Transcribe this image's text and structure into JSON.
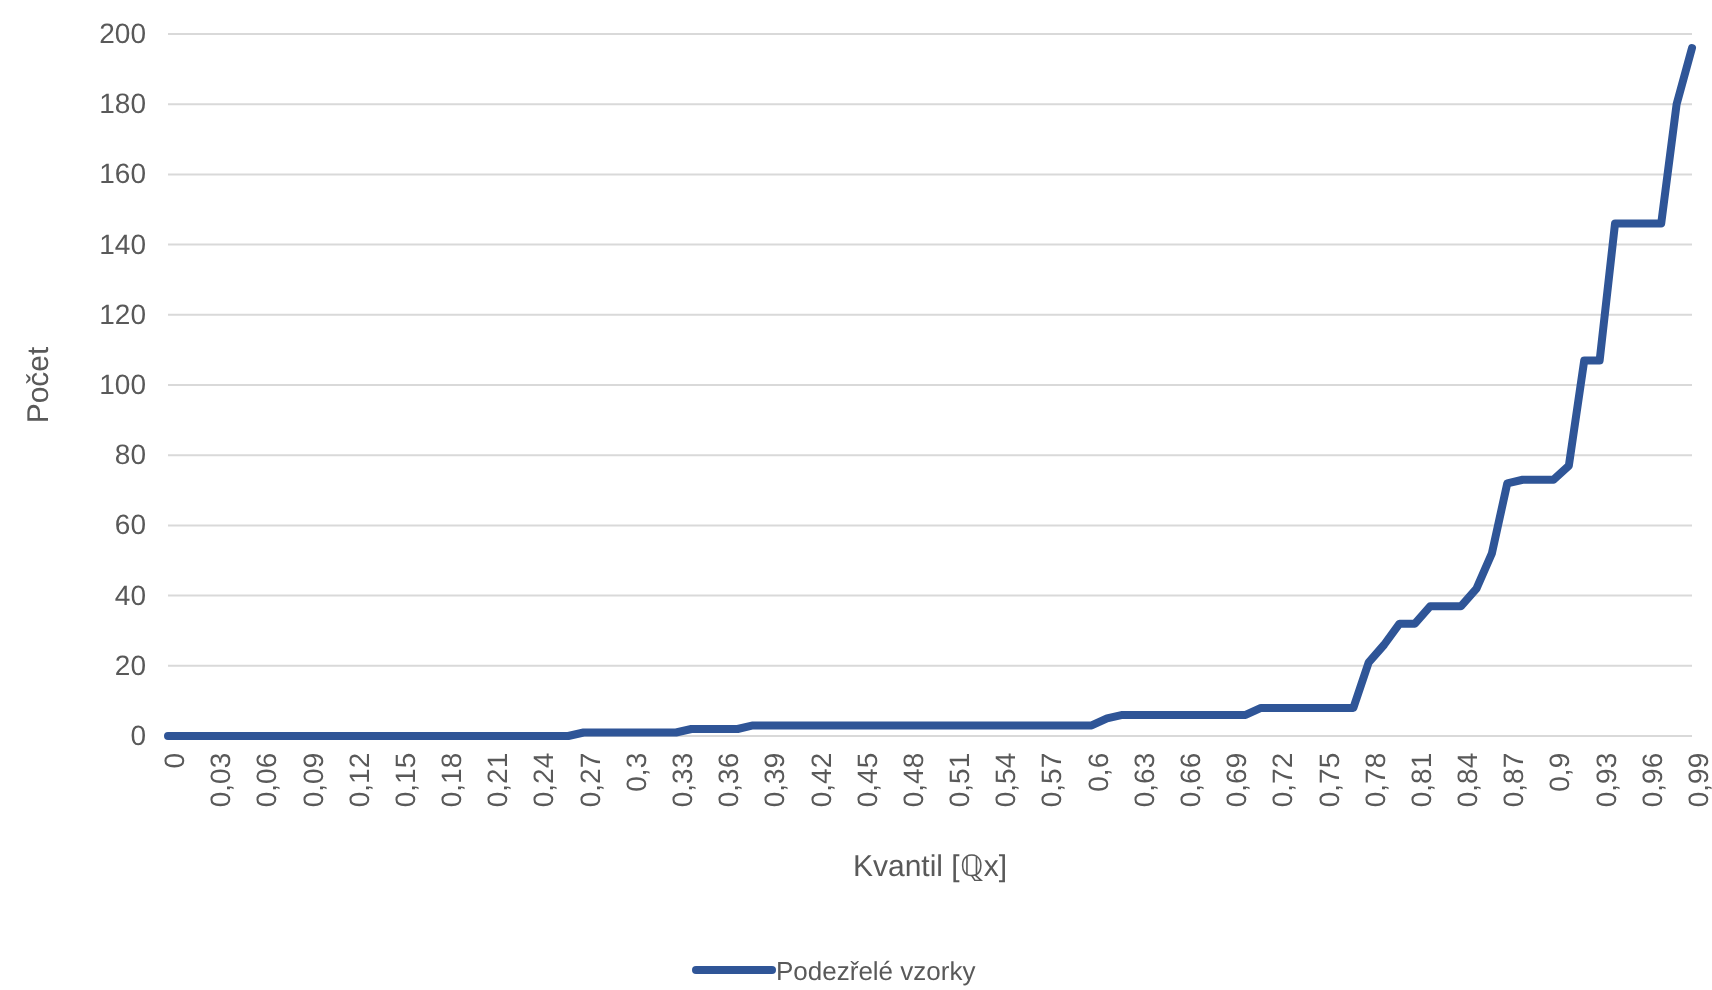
{
  "chart_data": {
    "type": "line",
    "xlabel": "Kvantil [ℚx]",
    "ylabel": "Počet",
    "categories": [
      "0",
      null,
      null,
      "0,03",
      null,
      null,
      "0,06",
      null,
      null,
      "0,09",
      null,
      null,
      "0,12",
      null,
      null,
      "0,15",
      null,
      null,
      "0,18",
      null,
      null,
      "0,21",
      null,
      null,
      "0,24",
      null,
      null,
      "0,27",
      null,
      null,
      "0,3",
      null,
      null,
      "0,33",
      null,
      null,
      "0,36",
      null,
      null,
      "0,39",
      null,
      null,
      "0,42",
      null,
      null,
      "0,45",
      null,
      null,
      "0,48",
      null,
      null,
      "0,51",
      null,
      null,
      "0,54",
      null,
      null,
      "0,57",
      null,
      null,
      "0,6",
      null,
      null,
      "0,63",
      null,
      null,
      "0,66",
      null,
      null,
      "0,69",
      null,
      null,
      "0,72",
      null,
      null,
      "0,75",
      null,
      null,
      "0,78",
      null,
      null,
      "0,81",
      null,
      null,
      "0,84",
      null,
      null,
      "0,87",
      null,
      null,
      "0,9",
      null,
      null,
      "0,93",
      null,
      null,
      "0,96",
      null,
      null,
      "0,99"
    ],
    "series": [
      {
        "name": "Podezřelé vzorky",
        "color": "#2f5597",
        "values": [
          0,
          0,
          0,
          0,
          0,
          0,
          0,
          0,
          0,
          0,
          0,
          0,
          0,
          0,
          0,
          0,
          0,
          0,
          0,
          0,
          0,
          0,
          0,
          0,
          0,
          0,
          0,
          1,
          1,
          1,
          1,
          1,
          1,
          1,
          2,
          2,
          2,
          2,
          3,
          3,
          3,
          3,
          3,
          3,
          3,
          3,
          3,
          3,
          3,
          3,
          3,
          3,
          3,
          3,
          3,
          3,
          3,
          3,
          3,
          3,
          3,
          5,
          6,
          6,
          6,
          6,
          6,
          6,
          6,
          6,
          6,
          8,
          8,
          8,
          8,
          8,
          8,
          8,
          21,
          26,
          32,
          32,
          37,
          37,
          37,
          42,
          52,
          72,
          73,
          73,
          73,
          77,
          107,
          107,
          146,
          146,
          146,
          146,
          180,
          196
        ]
      }
    ],
    "ylim": [
      0,
      200
    ],
    "yticks": [
      0,
      20,
      40,
      60,
      80,
      100,
      120,
      140,
      160,
      180,
      200
    ],
    "grid": "y",
    "legend": "bottom",
    "marker": "none",
    "line_style": "solid"
  }
}
